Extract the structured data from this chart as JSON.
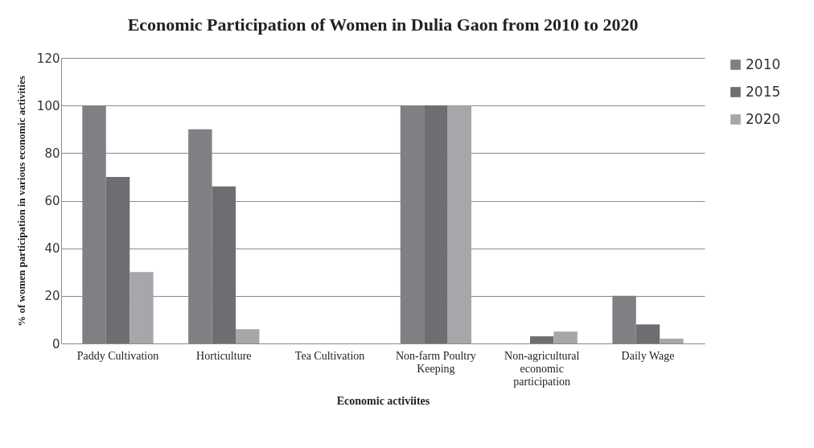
{
  "chart_data": {
    "type": "bar",
    "title": "Economic Participation of Women in Dulia Gaon from 2010 to 2020",
    "xlabel": "Economic activiites",
    "ylabel": "% of women participation in various economic activities",
    "categories": [
      "Paddy Cultivation",
      "Horticulture",
      "Tea Cultivation",
      "Non-farm Poultry Keeping",
      "Non-agricultural economic participation",
      "Daily Wage"
    ],
    "series": [
      {
        "name": "2010",
        "color": "#7f8083",
        "values": [
          100,
          90,
          0,
          100,
          0,
          20
        ]
      },
      {
        "name": "2015",
        "color": "#6d6e71",
        "values": [
          70,
          66,
          0,
          100,
          3,
          8
        ]
      },
      {
        "name": "2020",
        "color": "#a6a7aa",
        "values": [
          30,
          6,
          0,
          100,
          5,
          2
        ]
      }
    ],
    "ylim": [
      0,
      120
    ],
    "yticks": [
      0,
      20,
      40,
      60,
      80,
      100,
      120
    ],
    "grid": "y",
    "legend": "right"
  }
}
